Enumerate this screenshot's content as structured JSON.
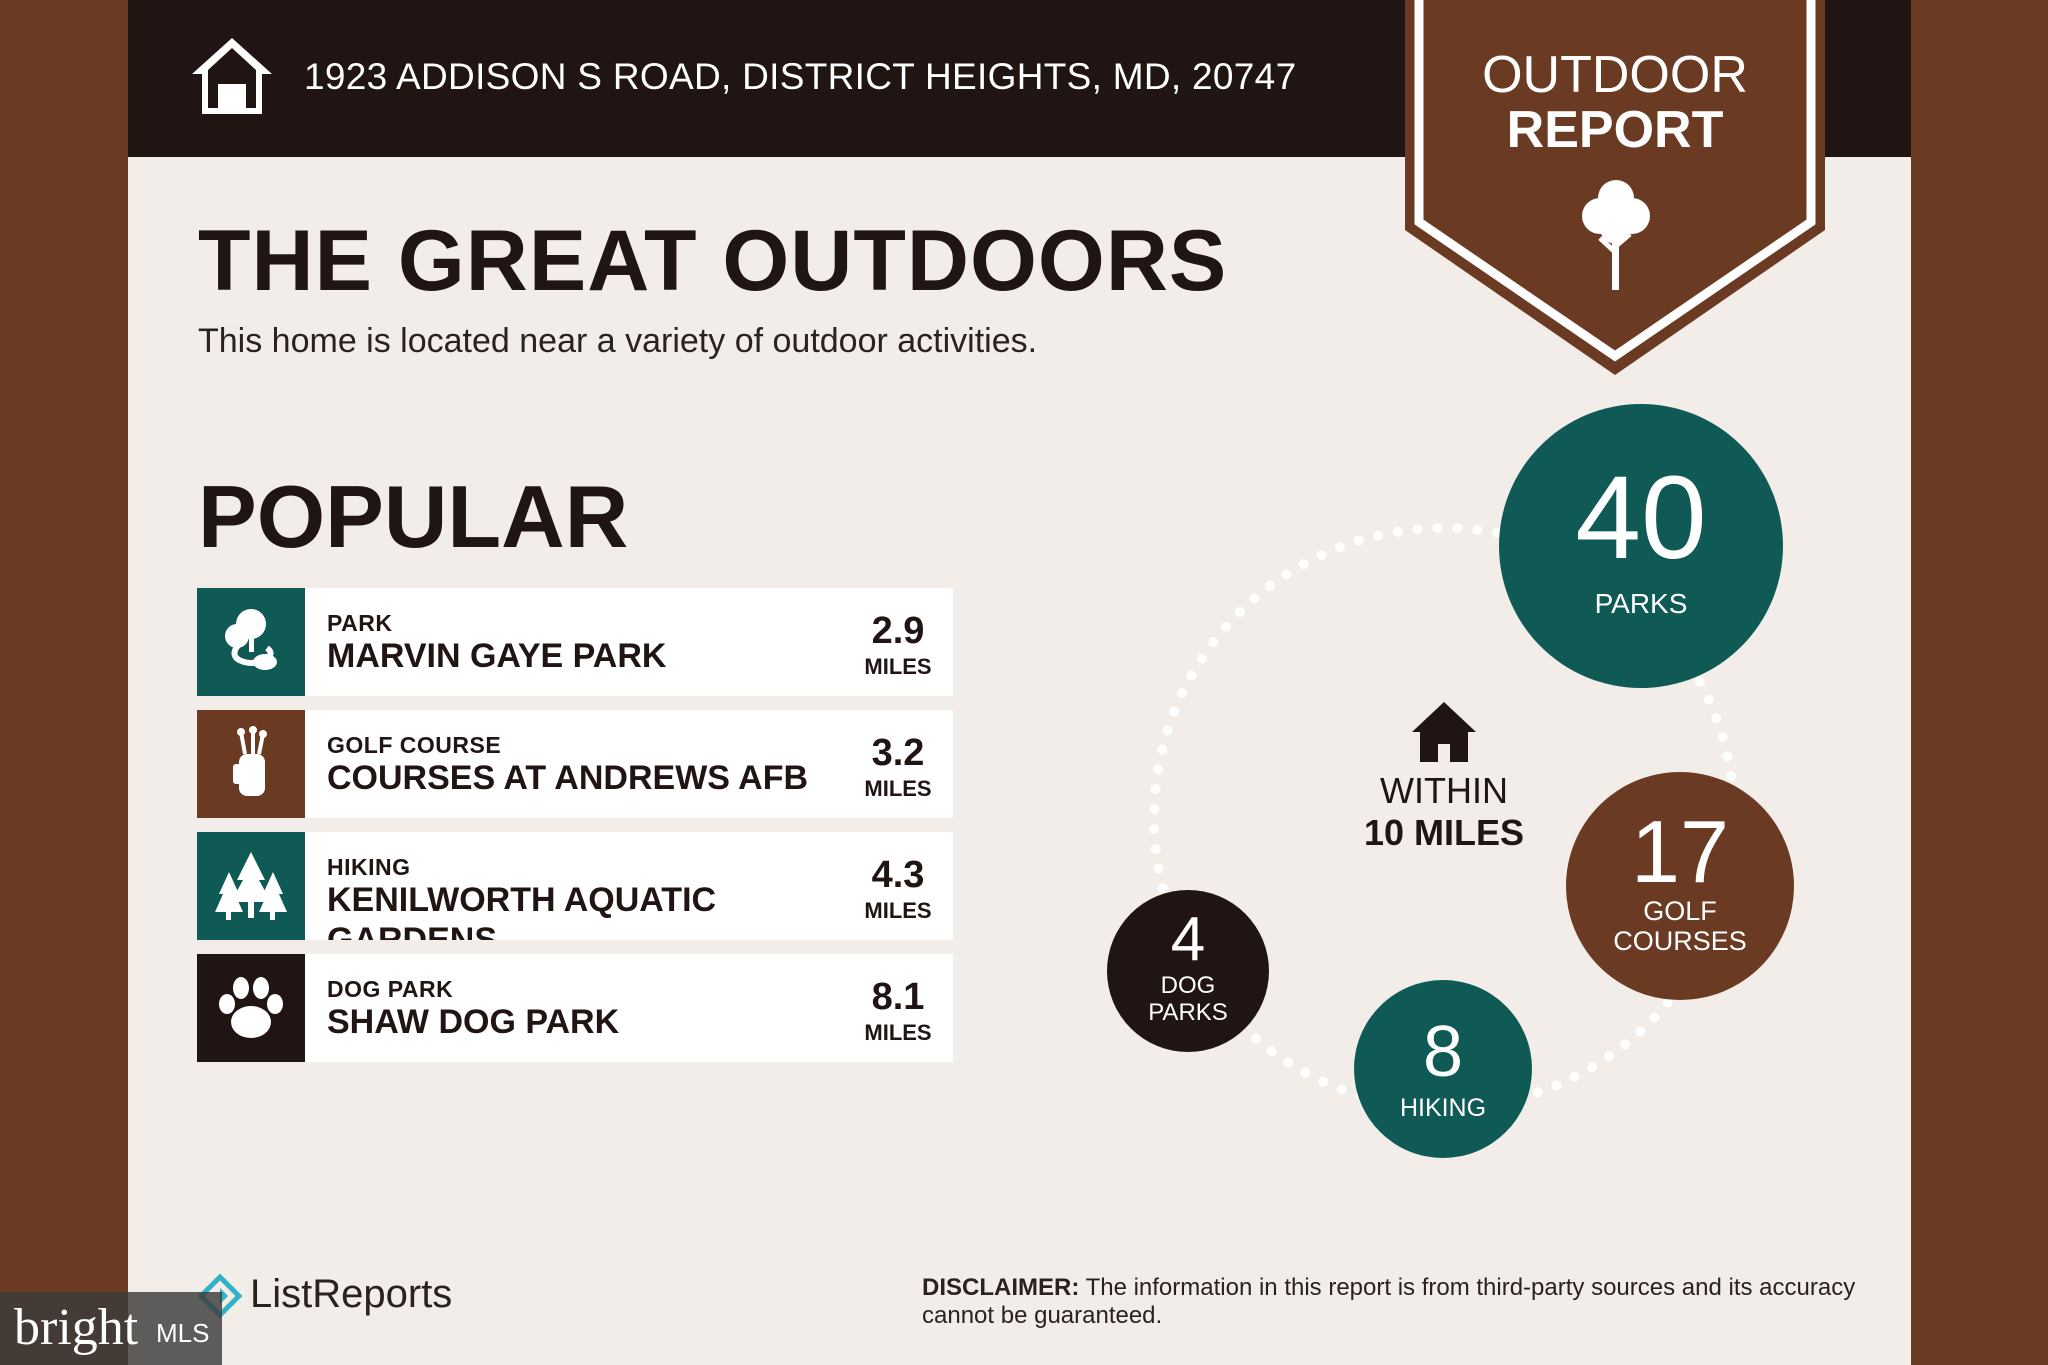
{
  "header": {
    "address": "1923 ADDISON S ROAD, DISTRICT HEIGHTS, MD, 20747",
    "home_icon": "house-icon"
  },
  "banner": {
    "line1": "OUTDOOR",
    "line2": "REPORT",
    "icon": "tree-icon"
  },
  "intro": {
    "title": "THE GREAT OUTDOORS",
    "subtitle": "This home is located near a variety of outdoor activities."
  },
  "popular": {
    "title": "POPULAR",
    "items": [
      {
        "category": "PARK",
        "name": "MARVIN GAYE PARK",
        "distance": "2.9",
        "unit": "MILES",
        "icon": "park-icon",
        "color": "#0f5a55"
      },
      {
        "category": "GOLF COURSE",
        "name": "COURSES AT ANDREWS AFB",
        "distance": "3.2",
        "unit": "MILES",
        "icon": "golf-bag-icon",
        "color": "#6b3a22"
      },
      {
        "category": "HIKING",
        "name": "KENILWORTH AQUATIC GARDENS",
        "distance": "4.3",
        "unit": "MILES",
        "icon": "pine-trees-icon",
        "color": "#0f5a55"
      },
      {
        "category": "DOG PARK",
        "name": "SHAW DOG PARK",
        "distance": "8.1",
        "unit": "MILES",
        "icon": "paw-icon",
        "color": "#201512"
      }
    ]
  },
  "radius": {
    "line1": "WITHIN",
    "line2": "10 MILES",
    "icon": "house-icon"
  },
  "counts": {
    "parks": {
      "value": "40",
      "label": "PARKS",
      "color": "#0f5a55"
    },
    "golf": {
      "value": "17",
      "label_line1": "GOLF",
      "label_line2": "COURSES",
      "color": "#6b3a22"
    },
    "hiking": {
      "value": "8",
      "label": "HIKING",
      "color": "#0f5a55"
    },
    "dog": {
      "value": "4",
      "label_line1": "DOG",
      "label_line2": "PARKS",
      "color": "#201512"
    }
  },
  "footer": {
    "logo_text": "ListReports",
    "disclaimer_label": "DISCLAIMER:",
    "disclaimer_text": " The information in this report is from third-party sources and its accuracy cannot be guaranteed."
  },
  "watermark": {
    "brand": "bright",
    "suffix": "MLS"
  }
}
